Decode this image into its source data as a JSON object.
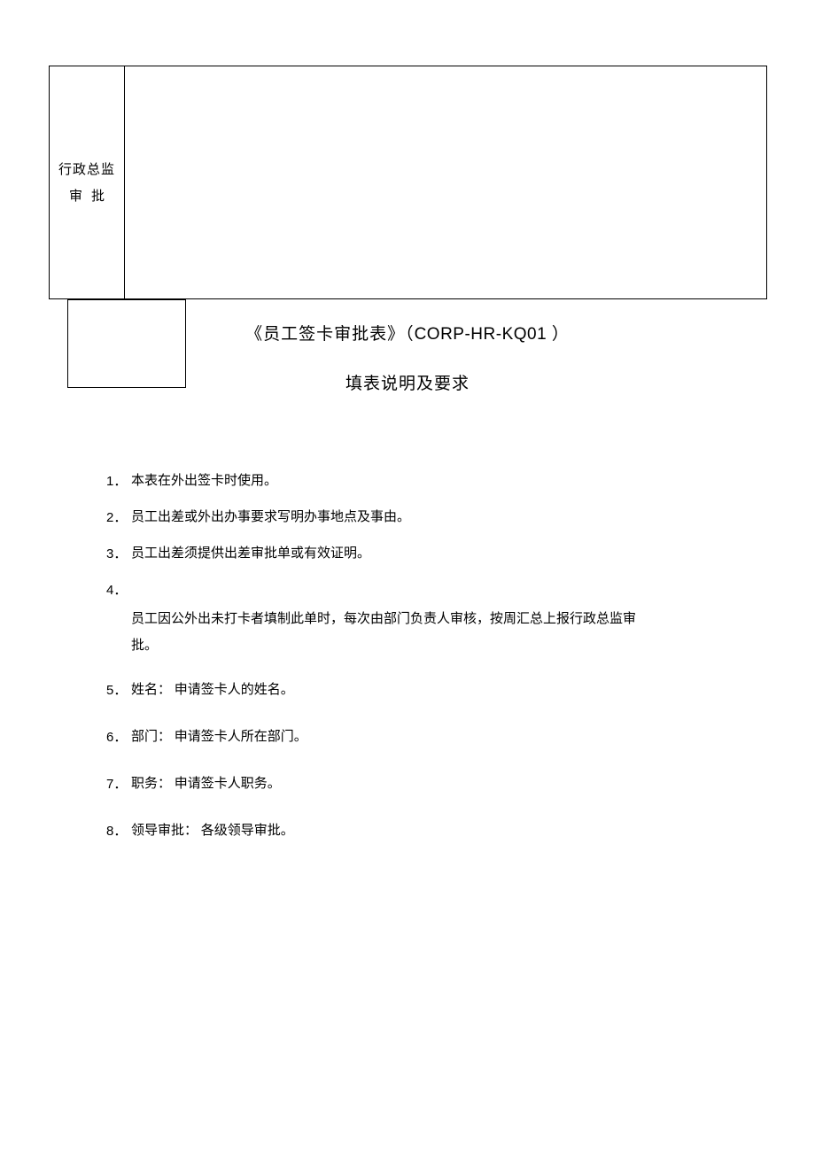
{
  "approval": {
    "line1": "行政总监",
    "line2": "审批"
  },
  "title": {
    "prefix": "《员工签卡审批表》（",
    "code": "CORP-HR-KQ01",
    "suffix": "  ）"
  },
  "subtitle": "填表说明及要求",
  "items": {
    "n1": "1．",
    "t1": "本表在外出签卡时使用。",
    "n2": "2．",
    "t2": "员工出差或外出办事要求写明办事地点及事由。",
    "n3": "3．",
    "t3": "员工出差须提供出差审批单或有效证明。",
    "n4": "4．",
    "t4a": "员工因公外出未打卡者填制此单时，每次由部门负责人审核，按周汇总上报行政总监审",
    "t4b": "批。",
    "n5": "5．",
    "t5": "姓名： 申请签卡人的姓名。",
    "n6": "6．",
    "t6": "部门： 申请签卡人所在部门。",
    "n7": "7．",
    "t7": "职务： 申请签卡人职务。",
    "n8": "8．",
    "t8": "领导审批：  各级领导审批。"
  }
}
